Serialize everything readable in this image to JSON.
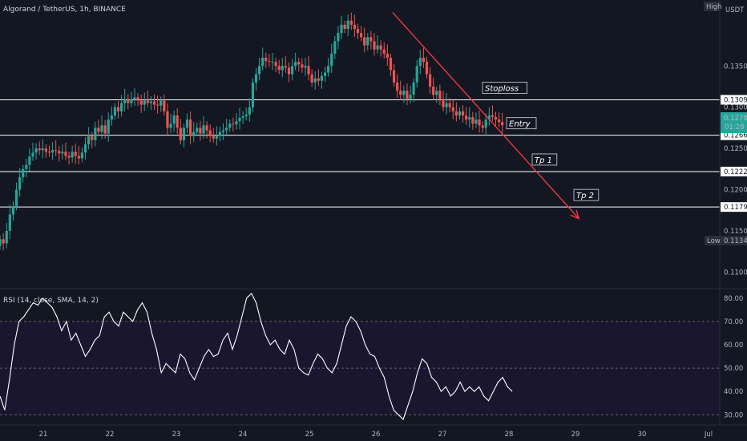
{
  "header": {
    "symbol": "Algorand / TetherUS, 1h, BINANCE"
  },
  "axis": {
    "currency": "USDT",
    "high_label": "High",
    "low_label": "Low",
    "low_value": "0.1134",
    "last_price": "0.1278",
    "countdown": "01:28"
  },
  "colors": {
    "bull": "#26a69a",
    "bear": "#ef5350",
    "arrow": "#f23645",
    "line": "#ffffff",
    "rsi_band": "#1a1630"
  },
  "chart_data": [
    {
      "type": "candlestick",
      "title": "",
      "x_ticks": [
        "21",
        "22",
        "23",
        "24",
        "25",
        "26",
        "27",
        "28",
        "29",
        "30",
        "Jul"
      ],
      "y_ticks": [
        "0.1350",
        "0.1300",
        "0.1250",
        "0.1200",
        "0.1150",
        "0.1100"
      ],
      "ylim": [
        0.108,
        0.143
      ],
      "xlim": [
        0,
        10.5
      ],
      "close": [
        0.114,
        0.1135,
        0.115,
        0.117,
        0.118,
        0.12,
        0.1215,
        0.1225,
        0.123,
        0.124,
        0.1245,
        0.125,
        0.1248,
        0.125,
        0.1246,
        0.1245,
        0.1248,
        0.1247,
        0.1244,
        0.1246,
        0.1241,
        0.1239,
        0.1246,
        0.1241,
        0.1238,
        0.1245,
        0.1255,
        0.1265,
        0.126,
        0.1275,
        0.127,
        0.1278,
        0.1268,
        0.1285,
        0.129,
        0.13,
        0.1295,
        0.1305,
        0.131,
        0.1305,
        0.131,
        0.1312,
        0.1308,
        0.1303,
        0.1308,
        0.1305,
        0.1307,
        0.1303,
        0.1302,
        0.1308,
        0.1295,
        0.1275,
        0.128,
        0.129,
        0.1275,
        0.126,
        0.1275,
        0.1285,
        0.1265,
        0.127,
        0.1275,
        0.1268,
        0.1278,
        0.1272,
        0.1265,
        0.1262,
        0.1265,
        0.127,
        0.1272,
        0.1275,
        0.128,
        0.1279,
        0.1283,
        0.1287,
        0.1289,
        0.1291,
        0.13,
        0.133,
        0.134,
        0.135,
        0.136,
        0.1356,
        0.1355,
        0.1355,
        0.135,
        0.1345,
        0.135,
        0.1348,
        0.134,
        0.135,
        0.1355,
        0.1352,
        0.1348,
        0.135,
        0.134,
        0.133,
        0.1335,
        0.1332,
        0.1338,
        0.1342,
        0.135,
        0.1365,
        0.138,
        0.139,
        0.14,
        0.1395,
        0.1405,
        0.14,
        0.1395,
        0.139,
        0.1385,
        0.1375,
        0.1385,
        0.138,
        0.137,
        0.1375,
        0.137,
        0.1365,
        0.136,
        0.1345,
        0.133,
        0.132,
        0.1315,
        0.132,
        0.131,
        0.1315,
        0.133,
        0.135,
        0.136,
        0.1355,
        0.134,
        0.1325,
        0.1315,
        0.132,
        0.131,
        0.13,
        0.1305,
        0.13,
        0.1295,
        0.129,
        0.1295,
        0.129,
        0.1285,
        0.1288,
        0.128,
        0.1285,
        0.1278,
        0.1275,
        0.1285,
        0.129,
        0.1288,
        0.1285,
        0.1282,
        0.1278
      ],
      "trend_arrow": {
        "from": [
          5.25,
          0.1415
        ],
        "to": [
          8.05,
          0.1165
        ]
      },
      "levels": [
        {
          "price": 0.1309,
          "tag": "0.1309",
          "annotation": "Stoploss"
        },
        {
          "price": 0.1266,
          "tag": "0.1266",
          "annotation": "Entry"
        },
        {
          "price": 0.1222,
          "tag": "0.1222",
          "annotation": "Tp 1"
        },
        {
          "price": 0.1179,
          "tag": "0.1179",
          "annotation": "Tp 2"
        }
      ]
    },
    {
      "type": "line",
      "title": "RSI (14, close, SMA, 14, 2)",
      "y_ticks": [
        "80.00",
        "70.00",
        "60.00",
        "50.00",
        "40.00",
        "30.00"
      ],
      "ylim": [
        27,
        82
      ],
      "band": [
        30,
        70
      ],
      "x_end": 7.05,
      "values": [
        38,
        32,
        45,
        60,
        70,
        72,
        75,
        78,
        77,
        80,
        78,
        76,
        72,
        66,
        70,
        62,
        65,
        60,
        55,
        58,
        62,
        64,
        72,
        74,
        70,
        68,
        74,
        72,
        70,
        75,
        78,
        74,
        65,
        58,
        48,
        52,
        50,
        48,
        56,
        54,
        48,
        45,
        50,
        55,
        58,
        55,
        56,
        62,
        65,
        58,
        64,
        72,
        80,
        82,
        78,
        70,
        64,
        60,
        62,
        58,
        56,
        62,
        58,
        50,
        48,
        47,
        52,
        56,
        54,
        50,
        48,
        52,
        60,
        68,
        72,
        70,
        66,
        60,
        56,
        55,
        50,
        46,
        38,
        32,
        30,
        28,
        34,
        40,
        48,
        54,
        52,
        46,
        44,
        40,
        42,
        38,
        40,
        44,
        40,
        42,
        40,
        42,
        38,
        36,
        40,
        44,
        46,
        42,
        40
      ]
    }
  ]
}
